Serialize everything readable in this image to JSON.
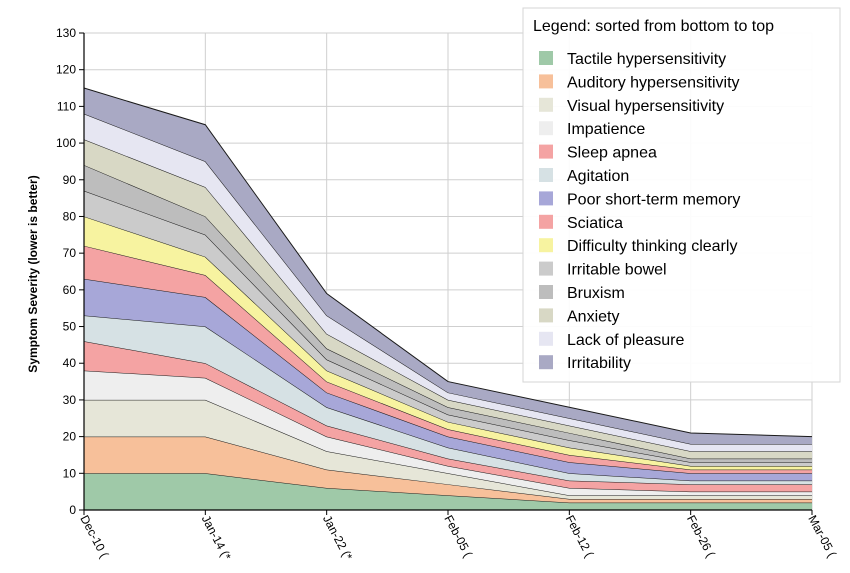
{
  "chart_data": {
    "type": "area",
    "stacked": true,
    "ylabel": "Symptom Severity (lower is better)",
    "ylim": [
      0,
      130
    ],
    "yticks": [
      0,
      10,
      20,
      30,
      40,
      50,
      60,
      70,
      80,
      90,
      100,
      110,
      120,
      130
    ],
    "grid": true,
    "x": [
      "Dec-10",
      "Jan-14",
      "Jan-22",
      "Feb-05",
      "Feb-12",
      "Feb-26",
      "Mar-05"
    ],
    "x_tick_labels": [
      "Dec-10 (",
      "Jan-14 (*",
      "Jan-22 (*",
      "Feb-05 (",
      "Feb-12 (",
      "Feb-26 (",
      "Mar-05 ("
    ],
    "legend": {
      "title": "Legend: sorted from bottom to top",
      "placement": "top-right"
    },
    "series": [
      {
        "name": "Tactile hypersensitivity",
        "color": "#9fc9a8",
        "values": [
          10,
          10,
          6,
          4,
          2,
          2,
          2
        ]
      },
      {
        "name": "Auditory hypersensitivity",
        "color": "#f7c09a",
        "values": [
          10,
          10,
          5,
          3,
          1,
          1,
          1
        ]
      },
      {
        "name": "Visual hypersensitivity",
        "color": "#e6e6d8",
        "values": [
          10,
          10,
          5,
          3,
          1,
          1,
          1
        ]
      },
      {
        "name": "Impatience",
        "color": "#eeeeee",
        "values": [
          8,
          6,
          4,
          2,
          2,
          1,
          1
        ]
      },
      {
        "name": "Sleep apnea",
        "color": "#f4a3a3",
        "values": [
          8,
          4,
          3,
          2,
          2,
          2,
          2
        ]
      },
      {
        "name": "Agitation",
        "color": "#d6e1e4",
        "values": [
          7,
          10,
          5,
          3,
          2,
          1,
          1
        ]
      },
      {
        "name": "Poor short-term memory",
        "color": "#a7a7d8",
        "values": [
          10,
          8,
          4,
          3,
          3,
          2,
          2
        ]
      },
      {
        "name": "Sciatica",
        "color": "#f4a3a3",
        "values": [
          9,
          6,
          3,
          2,
          2,
          1,
          1
        ]
      },
      {
        "name": "Difficulty thinking clearly",
        "color": "#f7f3a0",
        "values": [
          8,
          5,
          3,
          2,
          2,
          1,
          1
        ]
      },
      {
        "name": "Irritable bowel",
        "color": "#cbcbcb",
        "values": [
          7,
          6,
          3,
          2,
          2,
          1,
          1
        ]
      },
      {
        "name": "Bruxism",
        "color": "#bdbdbd",
        "values": [
          7,
          5,
          3,
          2,
          2,
          1,
          1
        ]
      },
      {
        "name": "Anxiety",
        "color": "#d8d8c5",
        "values": [
          7,
          8,
          4,
          2,
          2,
          2,
          2
        ]
      },
      {
        "name": "Lack of pleasure",
        "color": "#e6e6f2",
        "values": [
          7,
          7,
          5,
          2,
          2,
          2,
          2
        ]
      },
      {
        "name": "Irritability",
        "color": "#a9a9c4",
        "values": [
          7,
          10,
          6,
          3,
          3,
          3,
          2
        ]
      }
    ]
  }
}
